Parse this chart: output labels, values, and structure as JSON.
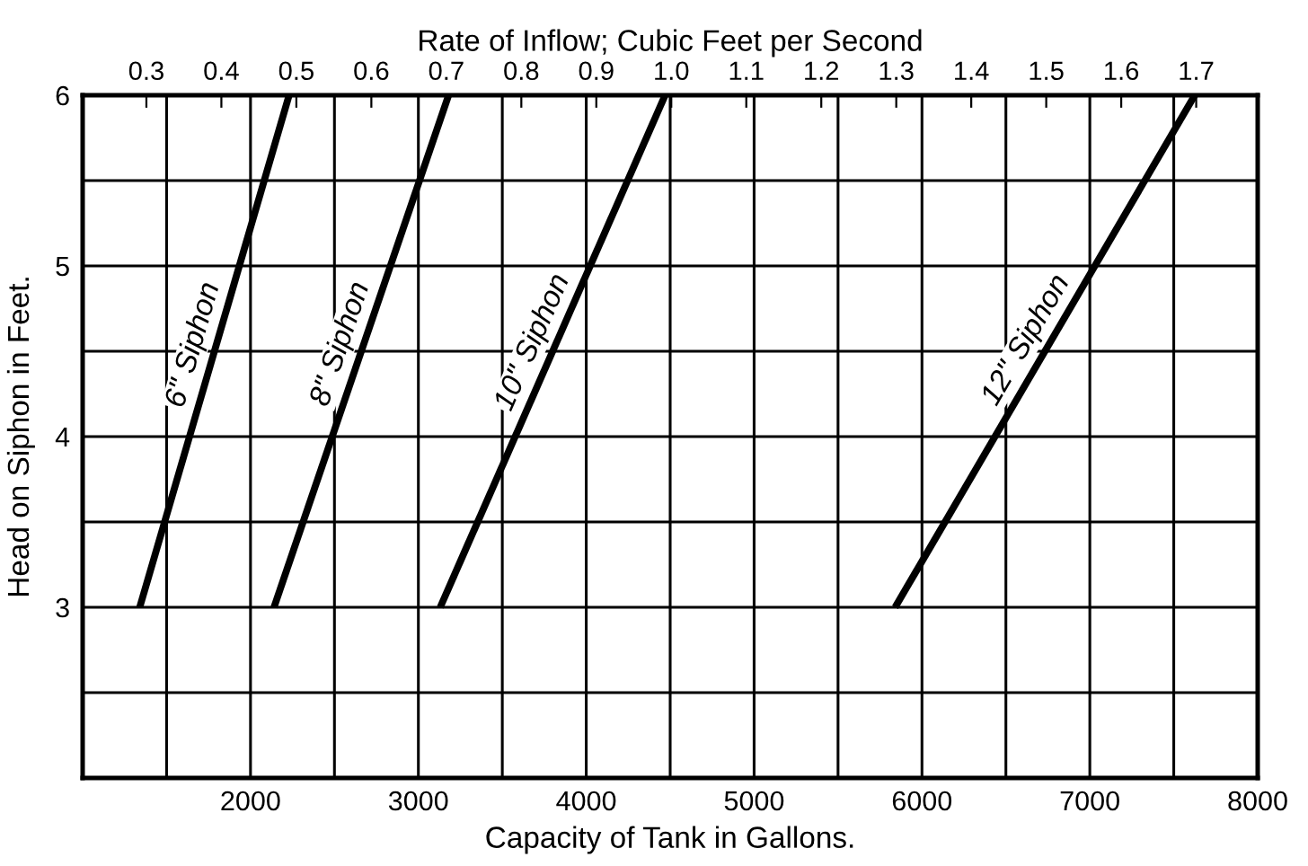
{
  "chart_data": {
    "type": "line",
    "xlabel": "Capacity of Tank in Gallons.",
    "ylabel": "Head on Siphon in Feet.",
    "x2label": "Rate of Inflow; Cubic Feet per Second",
    "xlim": [
      1000,
      8000
    ],
    "xticks": [
      {
        "value": 1000,
        "label": null
      },
      {
        "value": 1500,
        "label": null
      },
      2000,
      {
        "value": 2500,
        "label": null
      },
      3000,
      {
        "value": 3500,
        "label": null
      },
      4000,
      {
        "value": 4500,
        "label": null
      },
      5000,
      {
        "value": 5500,
        "label": null
      },
      6000,
      {
        "value": 6500,
        "label": null
      },
      7000,
      {
        "value": 7500,
        "label": null
      },
      8000
    ],
    "ylim": [
      2,
      6
    ],
    "yticks": [
      {
        "value": 2,
        "label": null
      },
      {
        "value": 2.5,
        "label": null
      },
      3,
      {
        "value": 3.5,
        "label": null
      },
      4,
      {
        "value": 4.5,
        "label": null
      },
      5,
      {
        "value": 5.5,
        "label": null
      },
      6
    ],
    "x2lim": [
      0.215,
      1.782
    ],
    "x2ticks": [
      0.3,
      0.4,
      0.5,
      0.6,
      0.7,
      0.8,
      0.9,
      {
        "value": 1.0,
        "label": "1.0"
      },
      1.1,
      1.2,
      1.3,
      1.4,
      1.5,
      1.6,
      1.7
    ],
    "grid": true,
    "line_style": "solid",
    "series": [
      {
        "name": "6\" Siphon",
        "color": "#000000",
        "x": [
          1340,
          2230
        ],
        "values": [
          3,
          6
        ]
      },
      {
        "name": "8\" Siphon",
        "color": "#000000",
        "x": [
          2140,
          3180
        ],
        "values": [
          3,
          6
        ]
      },
      {
        "name": "10\" Siphon",
        "color": "#000000",
        "x": [
          3130,
          4470
        ],
        "values": [
          3,
          6
        ]
      },
      {
        "name": "12\" Siphon",
        "color": "#000000",
        "x": [
          5840,
          7625
        ],
        "values": [
          3,
          6
        ]
      }
    ]
  }
}
